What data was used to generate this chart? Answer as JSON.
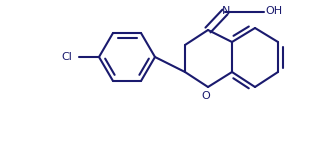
{
  "bg_color": "#ffffff",
  "bond_color": "#1a1a6e",
  "text_color": "#1a1a6e",
  "linewidth": 1.5,
  "figsize": [
    3.17,
    1.5
  ],
  "dpi": 100,
  "xlim": [
    0,
    317
  ],
  "ylim": [
    0,
    150
  ]
}
